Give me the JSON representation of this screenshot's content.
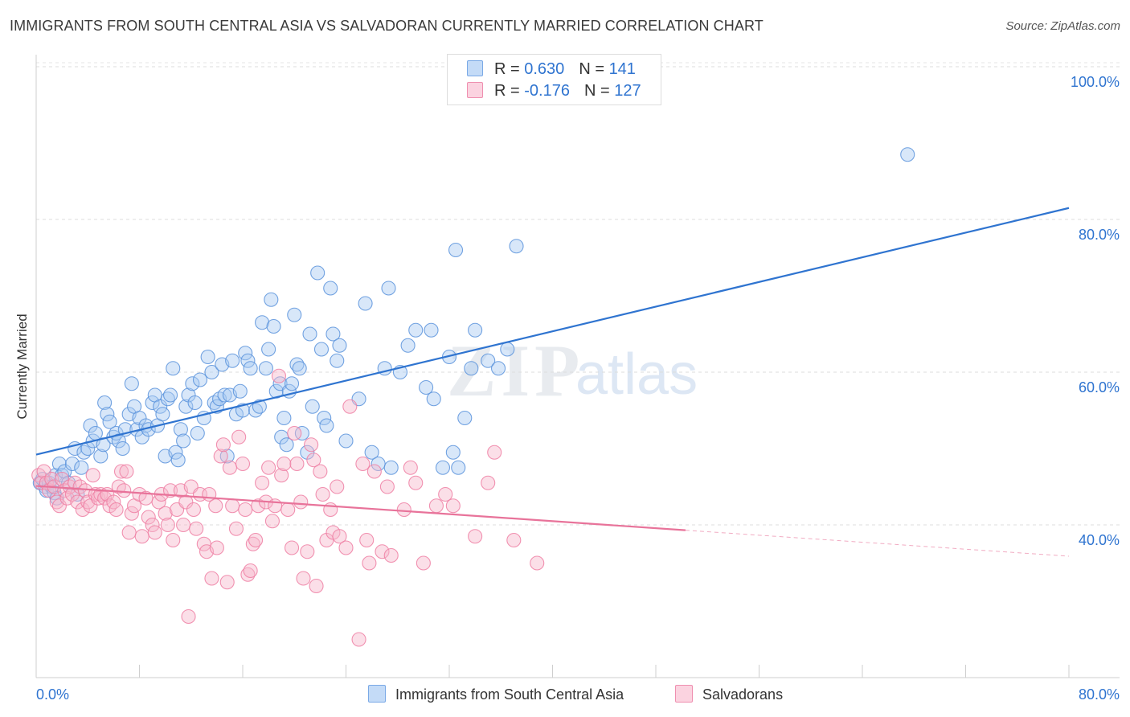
{
  "title": "IMMIGRANTS FROM SOUTH CENTRAL ASIA VS SALVADORAN CURRENTLY MARRIED CORRELATION CHART",
  "source": "Source: ZipAtlas.com",
  "watermark": {
    "zip": "ZIP",
    "atlas": "atlas"
  },
  "legend": {
    "r_label": "R =",
    "n_label": "N =",
    "rows": [
      {
        "r": "0.630",
        "n": "141",
        "color": "#a9c9f2"
      },
      {
        "r": "-0.176",
        "n": "127",
        "color": "#f7b8cd"
      }
    ]
  },
  "bottom_legend": [
    {
      "label": "Immigrants from South Central Asia",
      "color": "#a9c9f2"
    },
    {
      "label": "Salvadorans",
      "color": "#f7b8cd"
    }
  ],
  "chart_data": {
    "type": "scatter",
    "title": "IMMIGRANTS FROM SOUTH CENTRAL ASIA VS SALVADORAN CURRENTLY MARRIED CORRELATION CHART",
    "xlabel": "",
    "ylabel": "Currently Married",
    "xlim": [
      0,
      80
    ],
    "ylim": [
      20,
      104
    ],
    "x_tick_labels": [
      "0.0%",
      "80.0%"
    ],
    "y_tick_labels": [
      "40.0%",
      "60.0%",
      "80.0%",
      "100.0%"
    ],
    "y_ticks": [
      40,
      60,
      80,
      100
    ],
    "grid": true,
    "legend_position": "top-center",
    "series": [
      {
        "name": "Immigrants from South Central Asia",
        "color": "#5b93dc",
        "fill": "#a9c9f2",
        "trend": {
          "x": [
            0,
            80
          ],
          "y": [
            49.2,
            81.5
          ],
          "color": "#2f74d0"
        },
        "points": [
          [
            0.3,
            45.5
          ],
          [
            0.5,
            46
          ],
          [
            0.7,
            45
          ],
          [
            0.8,
            44.5
          ],
          [
            1,
            45.5
          ],
          [
            1.2,
            45
          ],
          [
            1.4,
            44.2
          ],
          [
            1.5,
            46.5
          ],
          [
            1.6,
            43.5
          ],
          [
            1.8,
            48
          ],
          [
            2,
            46.5
          ],
          [
            2.2,
            47
          ],
          [
            2.5,
            45.5
          ],
          [
            2.8,
            48
          ],
          [
            3,
            50
          ],
          [
            3.2,
            44
          ],
          [
            3.5,
            47.5
          ],
          [
            3.7,
            49.5
          ],
          [
            4,
            50
          ],
          [
            4.2,
            53
          ],
          [
            4.4,
            51
          ],
          [
            4.6,
            52
          ],
          [
            5,
            49
          ],
          [
            5.2,
            50.5
          ],
          [
            5.3,
            56
          ],
          [
            5.5,
            54.5
          ],
          [
            5.7,
            53.5
          ],
          [
            6,
            51.5
          ],
          [
            6.2,
            52
          ],
          [
            6.4,
            51
          ],
          [
            6.7,
            50
          ],
          [
            6.9,
            52.5
          ],
          [
            7.2,
            54.5
          ],
          [
            7.4,
            58.5
          ],
          [
            7.6,
            55.5
          ],
          [
            7.8,
            52.5
          ],
          [
            8,
            54
          ],
          [
            8.2,
            51.5
          ],
          [
            8.5,
            53
          ],
          [
            8.7,
            52.5
          ],
          [
            9,
            56
          ],
          [
            9.2,
            57
          ],
          [
            9.4,
            53
          ],
          [
            9.6,
            55.5
          ],
          [
            9.8,
            54.5
          ],
          [
            10,
            49
          ],
          [
            10.2,
            56.5
          ],
          [
            10.4,
            57
          ],
          [
            10.6,
            60.5
          ],
          [
            10.8,
            49.5
          ],
          [
            11,
            48.5
          ],
          [
            11.2,
            52.5
          ],
          [
            11.4,
            51
          ],
          [
            11.6,
            55.5
          ],
          [
            11.8,
            57
          ],
          [
            12.1,
            58.5
          ],
          [
            12.3,
            56
          ],
          [
            12.5,
            52
          ],
          [
            12.7,
            59
          ],
          [
            13,
            54
          ],
          [
            13.3,
            62
          ],
          [
            13.6,
            60
          ],
          [
            13.8,
            56
          ],
          [
            14,
            55.5
          ],
          [
            14.2,
            56.5
          ],
          [
            14.4,
            61
          ],
          [
            14.6,
            57
          ],
          [
            14.8,
            49
          ],
          [
            15,
            57
          ],
          [
            15.2,
            61.5
          ],
          [
            15.5,
            54.5
          ],
          [
            15.8,
            57.5
          ],
          [
            16,
            55
          ],
          [
            16.2,
            62.5
          ],
          [
            16.4,
            61.5
          ],
          [
            16.6,
            60.5
          ],
          [
            17,
            55
          ],
          [
            17.3,
            55.5
          ],
          [
            17.5,
            66.5
          ],
          [
            17.8,
            60.5
          ],
          [
            18,
            63
          ],
          [
            18.2,
            69.5
          ],
          [
            18.4,
            66
          ],
          [
            18.6,
            57.5
          ],
          [
            18.9,
            58.5
          ],
          [
            19,
            51.5
          ],
          [
            19.2,
            54
          ],
          [
            19.4,
            50.5
          ],
          [
            19.6,
            57.5
          ],
          [
            19.8,
            58.5
          ],
          [
            20,
            67.5
          ],
          [
            20.2,
            61
          ],
          [
            20.4,
            60.5
          ],
          [
            20.6,
            52
          ],
          [
            21,
            49.5
          ],
          [
            21.2,
            65
          ],
          [
            21.4,
            55.5
          ],
          [
            21.8,
            73
          ],
          [
            22.1,
            63
          ],
          [
            22.3,
            54
          ],
          [
            22.5,
            53
          ],
          [
            22.8,
            71
          ],
          [
            23,
            65
          ],
          [
            23.3,
            61.5
          ],
          [
            23.5,
            63.5
          ],
          [
            24,
            51
          ],
          [
            25,
            56.5
          ],
          [
            25.5,
            69
          ],
          [
            26,
            49.5
          ],
          [
            26.5,
            48
          ],
          [
            27,
            60.5
          ],
          [
            27.3,
            71
          ],
          [
            27.5,
            47.5
          ],
          [
            28.2,
            60
          ],
          [
            28.8,
            63.5
          ],
          [
            29.4,
            65.5
          ],
          [
            30.2,
            58
          ],
          [
            30.6,
            65.5
          ],
          [
            30.8,
            56.5
          ],
          [
            31.5,
            47.5
          ],
          [
            32,
            62
          ],
          [
            32.3,
            49.5
          ],
          [
            32.5,
            76
          ],
          [
            32.7,
            47.5
          ],
          [
            33.2,
            54
          ],
          [
            33.7,
            60.5
          ],
          [
            34,
            65.5
          ],
          [
            35,
            61.5
          ],
          [
            35.8,
            60.5
          ],
          [
            36.5,
            63
          ],
          [
            37.2,
            76.5
          ],
          [
            67.5,
            88.5
          ]
        ]
      },
      {
        "name": "Salvadorans",
        "color": "#ee7fa3",
        "fill": "#f7b8cd",
        "trend": {
          "x": [
            0,
            50.3
          ],
          "y": [
            45.1,
            39.3
          ],
          "color": "#e8739a",
          "dashed_to": [
            80,
            35.9
          ]
        },
        "points": [
          [
            0.2,
            46.5
          ],
          [
            0.4,
            45.5
          ],
          [
            0.6,
            47
          ],
          [
            0.8,
            45.5
          ],
          [
            1,
            44.5
          ],
          [
            1.2,
            46
          ],
          [
            1.4,
            45
          ],
          [
            1.6,
            43
          ],
          [
            1.8,
            42.5
          ],
          [
            2,
            46
          ],
          [
            2.2,
            44.5
          ],
          [
            2.4,
            43.5
          ],
          [
            2.6,
            45
          ],
          [
            2.8,
            44
          ],
          [
            3,
            45.5
          ],
          [
            3.2,
            43
          ],
          [
            3.4,
            45
          ],
          [
            3.6,
            42
          ],
          [
            3.8,
            44.5
          ],
          [
            4,
            43
          ],
          [
            4.2,
            42.5
          ],
          [
            4.4,
            46.5
          ],
          [
            4.6,
            44
          ],
          [
            4.8,
            43.5
          ],
          [
            5,
            44
          ],
          [
            5.3,
            43.5
          ],
          [
            5.5,
            44
          ],
          [
            5.7,
            42.5
          ],
          [
            6,
            43
          ],
          [
            6.2,
            42
          ],
          [
            6.4,
            45
          ],
          [
            6.6,
            47
          ],
          [
            6.8,
            44.5
          ],
          [
            7,
            47
          ],
          [
            7.2,
            39
          ],
          [
            7.4,
            41.5
          ],
          [
            7.6,
            42.5
          ],
          [
            8,
            44
          ],
          [
            8.2,
            38.5
          ],
          [
            8.5,
            43.5
          ],
          [
            8.7,
            41
          ],
          [
            9,
            40
          ],
          [
            9.2,
            39
          ],
          [
            9.5,
            43
          ],
          [
            9.7,
            44
          ],
          [
            10,
            41.5
          ],
          [
            10.2,
            40
          ],
          [
            10.4,
            44.5
          ],
          [
            10.6,
            38
          ],
          [
            10.9,
            42
          ],
          [
            11.2,
            44.5
          ],
          [
            11.4,
            40
          ],
          [
            11.6,
            43
          ],
          [
            11.8,
            28
          ],
          [
            12,
            45
          ],
          [
            12.2,
            42
          ],
          [
            12.4,
            39.5
          ],
          [
            12.7,
            44
          ],
          [
            13,
            37.5
          ],
          [
            13.2,
            36.5
          ],
          [
            13.4,
            44
          ],
          [
            13.6,
            33
          ],
          [
            13.9,
            42.5
          ],
          [
            14,
            37
          ],
          [
            14.3,
            49
          ],
          [
            14.5,
            50.5
          ],
          [
            14.8,
            32.5
          ],
          [
            15,
            47.5
          ],
          [
            15.2,
            42.5
          ],
          [
            15.5,
            39.5
          ],
          [
            15.7,
            51.5
          ],
          [
            16,
            48
          ],
          [
            16.2,
            42
          ],
          [
            16.4,
            33.5
          ],
          [
            16.6,
            34
          ],
          [
            16.8,
            37.5
          ],
          [
            17,
            38
          ],
          [
            17.2,
            42.5
          ],
          [
            17.5,
            45.5
          ],
          [
            17.8,
            43
          ],
          [
            18,
            47.5
          ],
          [
            18.3,
            40.5
          ],
          [
            18.5,
            42.5
          ],
          [
            18.8,
            59.5
          ],
          [
            19,
            46.5
          ],
          [
            19.2,
            48
          ],
          [
            19.5,
            42
          ],
          [
            19.8,
            37
          ],
          [
            20,
            52
          ],
          [
            20.2,
            48
          ],
          [
            20.5,
            43
          ],
          [
            20.7,
            33
          ],
          [
            21,
            36.5
          ],
          [
            21.3,
            50.5
          ],
          [
            21.5,
            48.5
          ],
          [
            21.7,
            32
          ],
          [
            22,
            47
          ],
          [
            22.2,
            44
          ],
          [
            22.5,
            38
          ],
          [
            22.8,
            42
          ],
          [
            23,
            39
          ],
          [
            23.3,
            45
          ],
          [
            23.5,
            38.5
          ],
          [
            24,
            37
          ],
          [
            24.3,
            55.5
          ],
          [
            25,
            25
          ],
          [
            25.3,
            48
          ],
          [
            25.6,
            38
          ],
          [
            25.8,
            35
          ],
          [
            26.2,
            47
          ],
          [
            26.8,
            36.5
          ],
          [
            27.2,
            45
          ],
          [
            27.5,
            36
          ],
          [
            28.5,
            42
          ],
          [
            29,
            47.5
          ],
          [
            29.4,
            45.5
          ],
          [
            30,
            35
          ],
          [
            31,
            42.5
          ],
          [
            31.7,
            44
          ],
          [
            32.3,
            42.5
          ],
          [
            34,
            38.5
          ],
          [
            35,
            45.5
          ],
          [
            35.5,
            49.5
          ],
          [
            37,
            38
          ],
          [
            38.8,
            35
          ]
        ]
      }
    ]
  }
}
